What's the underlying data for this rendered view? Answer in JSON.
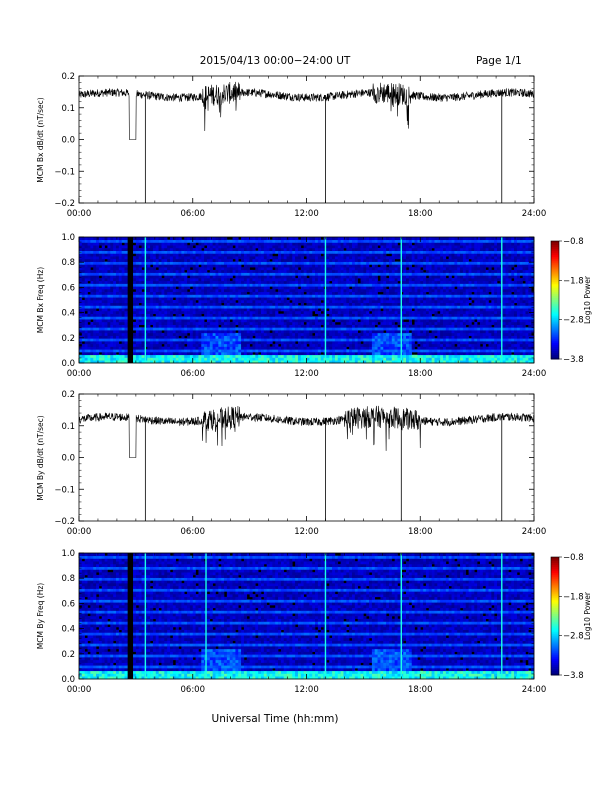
{
  "header": {
    "title": "2015/04/13  00:00−24:00 UT",
    "page": "Page 1/1"
  },
  "x_axis_title": "Universal Time (hh:mm)",
  "chart_data": [
    {
      "type": "line",
      "ylabel": "MCM Bx dB/dt (nT/sec)",
      "xlim": [
        0,
        24
      ],
      "ylim": [
        -0.2,
        0.2
      ],
      "x_ticks": [
        "00:00",
        "06:00",
        "12:00",
        "18:00",
        "24:00"
      ],
      "y_ticks": [
        "0.2",
        "0.1",
        "0.0",
        "−0.1",
        "−0.2"
      ],
      "baseline": 0.14,
      "spikes_hours": [
        3.5,
        13.0,
        22.3
      ],
      "dropouts_hours": [
        [
          2.65,
          3.0
        ]
      ],
      "disturbed_hours": [
        [
          6.5,
          8.5
        ],
        [
          15.5,
          17.5
        ]
      ]
    },
    {
      "type": "heatmap",
      "ylabel": "MCM Bx Freq (Hz)",
      "xlim": [
        0,
        24
      ],
      "ylim": [
        0,
        1.0
      ],
      "x_ticks": [
        "00:00",
        "06:00",
        "12:00",
        "18:00",
        "24:00"
      ],
      "y_ticks": [
        "1.0",
        "0.8",
        "0.6",
        "0.4",
        "0.2",
        "0.0"
      ],
      "colorbar": {
        "label": "Log10 Power",
        "ticks": [
          "−0.8",
          "−1.8",
          "−2.8",
          "−3.8"
        ],
        "range": [
          -3.8,
          -0.8
        ]
      },
      "vertical_lines_hours": [
        3.5,
        13.0,
        17.0,
        22.3
      ]
    },
    {
      "type": "line",
      "ylabel": "MCM By dB/dt (nT/sec)",
      "xlim": [
        0,
        24
      ],
      "ylim": [
        -0.2,
        0.2
      ],
      "x_ticks": [
        "00:00",
        "06:00",
        "12:00",
        "18:00",
        "24:00"
      ],
      "y_ticks": [
        "0.2",
        "0.1",
        "0.0",
        "−0.1",
        "−0.2"
      ],
      "baseline": 0.12,
      "spikes_hours": [
        3.5,
        13.0,
        17.0,
        22.3
      ],
      "dropouts_hours": [
        [
          2.65,
          3.0
        ]
      ],
      "disturbed_hours": [
        [
          6.5,
          8.5
        ],
        [
          14.0,
          18.0
        ]
      ]
    },
    {
      "type": "heatmap",
      "ylabel": "MCM By Freq (Hz)",
      "xlim": [
        0,
        24
      ],
      "ylim": [
        0,
        1.0
      ],
      "x_ticks": [
        "00:00",
        "06:00",
        "12:00",
        "18:00",
        "24:00"
      ],
      "y_ticks": [
        "1.0",
        "0.8",
        "0.6",
        "0.4",
        "0.2",
        "0.0"
      ],
      "colorbar": {
        "label": "Log10 Power",
        "ticks": [
          "−0.8",
          "−1.8",
          "−2.8",
          "−3.8"
        ],
        "range": [
          -3.8,
          -0.8
        ]
      },
      "vertical_lines_hours": [
        3.5,
        6.7,
        13.0,
        17.0,
        22.3
      ]
    }
  ]
}
